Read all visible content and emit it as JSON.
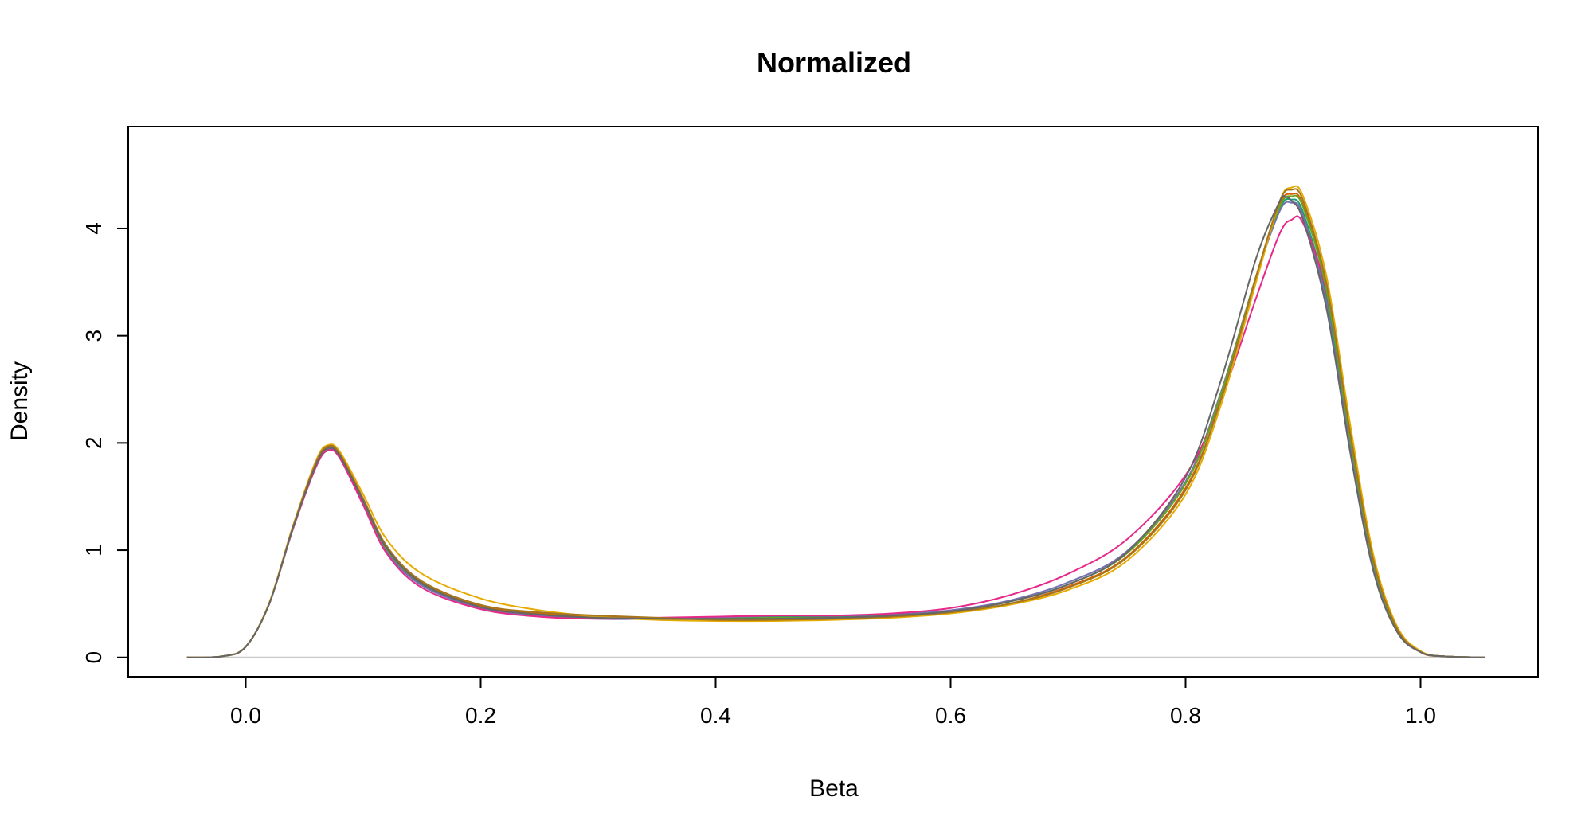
{
  "chart_data": {
    "type": "line",
    "title": "Normalized",
    "xlabel": "Beta",
    "ylabel": "Density",
    "xlim": [
      -0.1,
      1.1
    ],
    "ylim": [
      -0.18,
      4.95
    ],
    "xticks": [
      {
        "value": 0.0,
        "label": "0.0"
      },
      {
        "value": 0.2,
        "label": "0.2"
      },
      {
        "value": 0.4,
        "label": "0.4"
      },
      {
        "value": 0.6,
        "label": "0.6"
      },
      {
        "value": 0.8,
        "label": "0.8"
      },
      {
        "value": 1.0,
        "label": "1.0"
      }
    ],
    "yticks": [
      {
        "value": 0,
        "label": "0"
      },
      {
        "value": 1,
        "label": "1"
      },
      {
        "value": 2,
        "label": "2"
      },
      {
        "value": 3,
        "label": "3"
      },
      {
        "value": 4,
        "label": "4"
      }
    ],
    "grid": false,
    "legend": "none",
    "baseline": {
      "y": 0,
      "color": "#c8c8c8"
    },
    "series": [
      {
        "color": "#1b9e77",
        "points": [
          [
            -0.05,
            0.0
          ],
          [
            -0.02,
            0.01
          ],
          [
            0.0,
            0.1
          ],
          [
            0.02,
            0.5
          ],
          [
            0.04,
            1.2
          ],
          [
            0.06,
            1.8
          ],
          [
            0.07,
            1.95
          ],
          [
            0.08,
            1.88
          ],
          [
            0.1,
            1.45
          ],
          [
            0.12,
            1.0
          ],
          [
            0.15,
            0.68
          ],
          [
            0.2,
            0.47
          ],
          [
            0.25,
            0.4
          ],
          [
            0.3,
            0.37
          ],
          [
            0.35,
            0.36
          ],
          [
            0.4,
            0.37
          ],
          [
            0.45,
            0.38
          ],
          [
            0.5,
            0.38
          ],
          [
            0.55,
            0.39
          ],
          [
            0.6,
            0.43
          ],
          [
            0.65,
            0.52
          ],
          [
            0.7,
            0.68
          ],
          [
            0.75,
            0.97
          ],
          [
            0.8,
            1.62
          ],
          [
            0.83,
            2.45
          ],
          [
            0.86,
            3.55
          ],
          [
            0.88,
            4.18
          ],
          [
            0.89,
            4.27
          ],
          [
            0.9,
            4.15
          ],
          [
            0.92,
            3.35
          ],
          [
            0.94,
            2.0
          ],
          [
            0.96,
            0.85
          ],
          [
            0.98,
            0.25
          ],
          [
            1.0,
            0.05
          ],
          [
            1.02,
            0.01
          ],
          [
            1.055,
            0.0
          ]
        ]
      },
      {
        "color": "#d95f02",
        "points": [
          [
            -0.05,
            0.0
          ],
          [
            -0.02,
            0.01
          ],
          [
            0.0,
            0.1
          ],
          [
            0.02,
            0.5
          ],
          [
            0.04,
            1.2
          ],
          [
            0.06,
            1.81
          ],
          [
            0.07,
            1.96
          ],
          [
            0.08,
            1.9
          ],
          [
            0.1,
            1.48
          ],
          [
            0.12,
            1.03
          ],
          [
            0.15,
            0.7
          ],
          [
            0.2,
            0.48
          ],
          [
            0.25,
            0.41
          ],
          [
            0.3,
            0.38
          ],
          [
            0.35,
            0.36
          ],
          [
            0.4,
            0.36
          ],
          [
            0.45,
            0.36
          ],
          [
            0.5,
            0.37
          ],
          [
            0.55,
            0.38
          ],
          [
            0.6,
            0.42
          ],
          [
            0.65,
            0.5
          ],
          [
            0.7,
            0.66
          ],
          [
            0.75,
            0.94
          ],
          [
            0.8,
            1.58
          ],
          [
            0.83,
            2.4
          ],
          [
            0.86,
            3.55
          ],
          [
            0.88,
            4.22
          ],
          [
            0.89,
            4.32
          ],
          [
            0.9,
            4.22
          ],
          [
            0.92,
            3.45
          ],
          [
            0.94,
            2.08
          ],
          [
            0.96,
            0.9
          ],
          [
            0.98,
            0.27
          ],
          [
            1.0,
            0.05
          ],
          [
            1.02,
            0.01
          ],
          [
            1.055,
            0.0
          ]
        ]
      },
      {
        "color": "#7570b3",
        "points": [
          [
            -0.05,
            0.0
          ],
          [
            -0.02,
            0.01
          ],
          [
            0.0,
            0.1
          ],
          [
            0.02,
            0.5
          ],
          [
            0.04,
            1.19
          ],
          [
            0.06,
            1.79
          ],
          [
            0.07,
            1.94
          ],
          [
            0.08,
            1.87
          ],
          [
            0.1,
            1.44
          ],
          [
            0.12,
            0.99
          ],
          [
            0.15,
            0.67
          ],
          [
            0.2,
            0.46
          ],
          [
            0.25,
            0.39
          ],
          [
            0.3,
            0.36
          ],
          [
            0.35,
            0.36
          ],
          [
            0.4,
            0.37
          ],
          [
            0.45,
            0.39
          ],
          [
            0.5,
            0.39
          ],
          [
            0.55,
            0.4
          ],
          [
            0.6,
            0.44
          ],
          [
            0.65,
            0.53
          ],
          [
            0.7,
            0.7
          ],
          [
            0.75,
            0.99
          ],
          [
            0.8,
            1.64
          ],
          [
            0.83,
            2.47
          ],
          [
            0.86,
            3.55
          ],
          [
            0.88,
            4.16
          ],
          [
            0.89,
            4.24
          ],
          [
            0.9,
            4.12
          ],
          [
            0.92,
            3.3
          ],
          [
            0.94,
            1.96
          ],
          [
            0.96,
            0.82
          ],
          [
            0.98,
            0.24
          ],
          [
            1.0,
            0.05
          ],
          [
            1.02,
            0.01
          ],
          [
            1.055,
            0.0
          ]
        ]
      },
      {
        "color": "#e7298a",
        "points": [
          [
            -0.05,
            0.0
          ],
          [
            -0.02,
            0.01
          ],
          [
            0.0,
            0.1
          ],
          [
            0.02,
            0.5
          ],
          [
            0.04,
            1.19
          ],
          [
            0.06,
            1.78
          ],
          [
            0.07,
            1.93
          ],
          [
            0.08,
            1.86
          ],
          [
            0.1,
            1.42
          ],
          [
            0.12,
            0.97
          ],
          [
            0.15,
            0.65
          ],
          [
            0.2,
            0.45
          ],
          [
            0.25,
            0.38
          ],
          [
            0.3,
            0.36
          ],
          [
            0.35,
            0.37
          ],
          [
            0.4,
            0.38
          ],
          [
            0.45,
            0.39
          ],
          [
            0.5,
            0.39
          ],
          [
            0.55,
            0.41
          ],
          [
            0.6,
            0.46
          ],
          [
            0.65,
            0.58
          ],
          [
            0.7,
            0.78
          ],
          [
            0.75,
            1.1
          ],
          [
            0.8,
            1.7
          ],
          [
            0.83,
            2.4
          ],
          [
            0.86,
            3.35
          ],
          [
            0.88,
            3.95
          ],
          [
            0.89,
            4.08
          ],
          [
            0.9,
            4.05
          ],
          [
            0.92,
            3.4
          ],
          [
            0.94,
            2.1
          ],
          [
            0.96,
            0.9
          ],
          [
            0.98,
            0.27
          ],
          [
            1.0,
            0.05
          ],
          [
            1.02,
            0.01
          ],
          [
            1.055,
            0.0
          ]
        ]
      },
      {
        "color": "#66a61e",
        "points": [
          [
            -0.05,
            0.0
          ],
          [
            -0.02,
            0.01
          ],
          [
            0.0,
            0.1
          ],
          [
            0.02,
            0.5
          ],
          [
            0.04,
            1.2
          ],
          [
            0.06,
            1.8
          ],
          [
            0.07,
            1.95
          ],
          [
            0.08,
            1.89
          ],
          [
            0.1,
            1.46
          ],
          [
            0.12,
            1.01
          ],
          [
            0.15,
            0.69
          ],
          [
            0.2,
            0.47
          ],
          [
            0.25,
            0.4
          ],
          [
            0.3,
            0.37
          ],
          [
            0.35,
            0.36
          ],
          [
            0.4,
            0.36
          ],
          [
            0.45,
            0.37
          ],
          [
            0.5,
            0.37
          ],
          [
            0.55,
            0.39
          ],
          [
            0.6,
            0.43
          ],
          [
            0.65,
            0.52
          ],
          [
            0.7,
            0.68
          ],
          [
            0.75,
            0.97
          ],
          [
            0.8,
            1.62
          ],
          [
            0.83,
            2.45
          ],
          [
            0.86,
            3.55
          ],
          [
            0.88,
            4.2
          ],
          [
            0.89,
            4.3
          ],
          [
            0.9,
            4.2
          ],
          [
            0.92,
            3.42
          ],
          [
            0.94,
            2.05
          ],
          [
            0.96,
            0.88
          ],
          [
            0.98,
            0.26
          ],
          [
            1.0,
            0.05
          ],
          [
            1.02,
            0.01
          ],
          [
            1.055,
            0.0
          ]
        ]
      },
      {
        "color": "#e6ab02",
        "points": [
          [
            -0.05,
            0.0
          ],
          [
            -0.02,
            0.01
          ],
          [
            0.0,
            0.1
          ],
          [
            0.02,
            0.51
          ],
          [
            0.04,
            1.22
          ],
          [
            0.06,
            1.84
          ],
          [
            0.07,
            1.98
          ],
          [
            0.08,
            1.92
          ],
          [
            0.1,
            1.52
          ],
          [
            0.12,
            1.1
          ],
          [
            0.15,
            0.78
          ],
          [
            0.2,
            0.55
          ],
          [
            0.25,
            0.44
          ],
          [
            0.3,
            0.38
          ],
          [
            0.35,
            0.35
          ],
          [
            0.4,
            0.34
          ],
          [
            0.45,
            0.34
          ],
          [
            0.5,
            0.35
          ],
          [
            0.55,
            0.37
          ],
          [
            0.6,
            0.41
          ],
          [
            0.65,
            0.49
          ],
          [
            0.7,
            0.63
          ],
          [
            0.75,
            0.9
          ],
          [
            0.8,
            1.52
          ],
          [
            0.83,
            2.35
          ],
          [
            0.86,
            3.5
          ],
          [
            0.88,
            4.25
          ],
          [
            0.89,
            4.38
          ],
          [
            0.9,
            4.3
          ],
          [
            0.92,
            3.55
          ],
          [
            0.94,
            2.18
          ],
          [
            0.96,
            0.95
          ],
          [
            0.98,
            0.29
          ],
          [
            1.0,
            0.06
          ],
          [
            1.02,
            0.01
          ],
          [
            1.055,
            0.0
          ]
        ]
      },
      {
        "color": "#a6761d",
        "points": [
          [
            -0.05,
            0.0
          ],
          [
            -0.02,
            0.01
          ],
          [
            0.0,
            0.1
          ],
          [
            0.02,
            0.5
          ],
          [
            0.04,
            1.21
          ],
          [
            0.06,
            1.82
          ],
          [
            0.07,
            1.97
          ],
          [
            0.08,
            1.9
          ],
          [
            0.1,
            1.48
          ],
          [
            0.12,
            1.04
          ],
          [
            0.15,
            0.71
          ],
          [
            0.2,
            0.49
          ],
          [
            0.25,
            0.42
          ],
          [
            0.3,
            0.39
          ],
          [
            0.35,
            0.37
          ],
          [
            0.4,
            0.35
          ],
          [
            0.45,
            0.35
          ],
          [
            0.5,
            0.36
          ],
          [
            0.55,
            0.38
          ],
          [
            0.6,
            0.42
          ],
          [
            0.65,
            0.5
          ],
          [
            0.7,
            0.65
          ],
          [
            0.75,
            0.93
          ],
          [
            0.8,
            1.56
          ],
          [
            0.83,
            2.4
          ],
          [
            0.86,
            3.55
          ],
          [
            0.88,
            4.25
          ],
          [
            0.89,
            4.36
          ],
          [
            0.9,
            4.26
          ],
          [
            0.92,
            3.48
          ],
          [
            0.94,
            2.1
          ],
          [
            0.96,
            0.9
          ],
          [
            0.98,
            0.27
          ],
          [
            1.0,
            0.05
          ],
          [
            1.02,
            0.01
          ],
          [
            1.055,
            0.0
          ]
        ]
      },
      {
        "color": "#666666",
        "points": [
          [
            -0.05,
            0.0
          ],
          [
            -0.02,
            0.01
          ],
          [
            0.0,
            0.1
          ],
          [
            0.02,
            0.5
          ],
          [
            0.04,
            1.2
          ],
          [
            0.06,
            1.8
          ],
          [
            0.07,
            1.95
          ],
          [
            0.08,
            1.88
          ],
          [
            0.1,
            1.46
          ],
          [
            0.12,
            1.02
          ],
          [
            0.15,
            0.69
          ],
          [
            0.2,
            0.47
          ],
          [
            0.25,
            0.4
          ],
          [
            0.3,
            0.37
          ],
          [
            0.35,
            0.36
          ],
          [
            0.4,
            0.36
          ],
          [
            0.45,
            0.36
          ],
          [
            0.5,
            0.37
          ],
          [
            0.55,
            0.39
          ],
          [
            0.6,
            0.43
          ],
          [
            0.65,
            0.52
          ],
          [
            0.7,
            0.68
          ],
          [
            0.75,
            0.98
          ],
          [
            0.8,
            1.68
          ],
          [
            0.83,
            2.58
          ],
          [
            0.86,
            3.72
          ],
          [
            0.88,
            4.25
          ],
          [
            0.885,
            4.29
          ],
          [
            0.89,
            4.26
          ],
          [
            0.9,
            4.08
          ],
          [
            0.92,
            3.25
          ],
          [
            0.94,
            1.92
          ],
          [
            0.96,
            0.8
          ],
          [
            0.98,
            0.24
          ],
          [
            1.0,
            0.05
          ],
          [
            1.02,
            0.01
          ],
          [
            1.055,
            0.0
          ]
        ]
      }
    ]
  }
}
